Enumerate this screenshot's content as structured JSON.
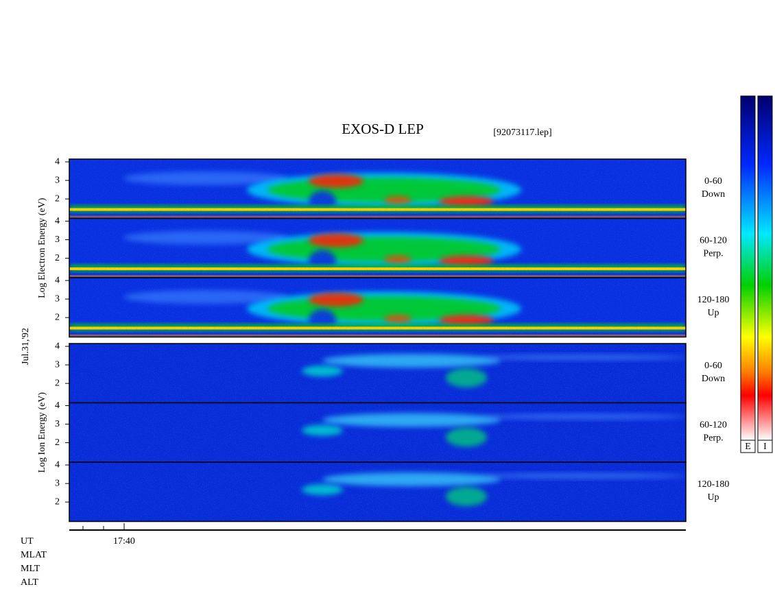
{
  "chart_data": {
    "type": "spectrogram",
    "title": "EXOS-D LEP",
    "file": "[92073117.lep]",
    "date": "Jul.31,'92",
    "groups": [
      {
        "ylabel": "Log Electron Energy (eV)",
        "panels": [
          {
            "pitch": "0-60",
            "direction": "Down"
          },
          {
            "pitch": "60-120",
            "direction": "Perp."
          },
          {
            "pitch": "120-180",
            "direction": "Up"
          }
        ]
      },
      {
        "ylabel": "Log Ion Energy (eV)",
        "panels": [
          {
            "pitch": "0-60",
            "direction": "Down"
          },
          {
            "pitch": "60-120",
            "direction": "Perp."
          },
          {
            "pitch": "120-180",
            "direction": "Up"
          }
        ]
      }
    ],
    "ylim": [
      0.95,
      4.15
    ],
    "yticks": [
      2,
      3,
      4
    ],
    "xtick_label": "17:40",
    "row_labels": [
      "UT",
      "MLAT",
      "MLT",
      "ALT"
    ],
    "colorbar_labels": [
      "E",
      "I"
    ]
  }
}
